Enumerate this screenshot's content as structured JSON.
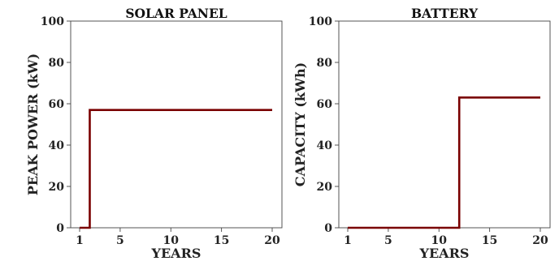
{
  "chart_data": [
    {
      "type": "line",
      "step": true,
      "title": "SOLAR PANEL",
      "xlabel": "YEARS",
      "ylabel": "PEAK POWER (kW)",
      "xlim": [
        1,
        20
      ],
      "ylim": [
        0,
        100
      ],
      "xticks": [
        1,
        5,
        10,
        15,
        20
      ],
      "yticks": [
        0,
        20,
        40,
        60,
        80,
        100
      ],
      "line_color": "#7a0000",
      "grid": false,
      "series": [
        {
          "x": [
            1,
            2,
            2,
            20
          ],
          "y": [
            0,
            0,
            57,
            57
          ]
        }
      ]
    },
    {
      "type": "line",
      "step": true,
      "title": "BATTERY",
      "xlabel": "YEARS",
      "ylabel": "CAPACITY (kWh)",
      "xlim": [
        1,
        20
      ],
      "ylim": [
        0,
        100
      ],
      "xticks": [
        1,
        5,
        10,
        15,
        20
      ],
      "yticks": [
        0,
        20,
        40,
        60,
        80,
        100
      ],
      "line_color": "#7a0000",
      "grid": false,
      "series": [
        {
          "x": [
            1,
            12,
            12,
            20
          ],
          "y": [
            0,
            0,
            63,
            63
          ]
        }
      ]
    }
  ]
}
